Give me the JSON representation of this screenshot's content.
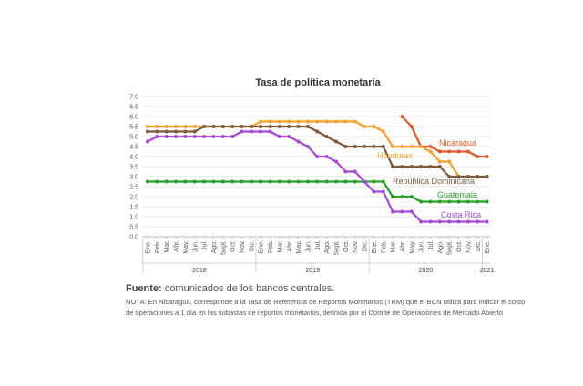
{
  "chart_data": {
    "type": "line",
    "title": "Tasa de política monetaria",
    "ylim": [
      0,
      7
    ],
    "yticks": [
      "7.0",
      "6.5",
      "6.0",
      "5.5",
      "5.0",
      "4.5",
      "4.0",
      "3.5",
      "3.0",
      "2.5",
      "2.0",
      "1.5",
      "1.0",
      "0.5",
      "0.0"
    ],
    "months": [
      "Ene.",
      "Feb.",
      "Mar.",
      "Abr.",
      "May.",
      "Jun.",
      "Jul.",
      "Ago.",
      "Sept.",
      "Oct.",
      "Nov.",
      "Dic.",
      "Ene.",
      "Feb.",
      "Mar.",
      "Abr.",
      "May.",
      "Jun.",
      "Jul.",
      "Ago.",
      "Sept.",
      "Oct.",
      "Nov.",
      "Dic.",
      "Ene.",
      "Feb.",
      "Mar.",
      "Abr.",
      "May.",
      "Jun.",
      "Jul.",
      "Ago.",
      "Sept.",
      "Oct.",
      "Nov.",
      "Dic.",
      "Ene."
    ],
    "years": [
      {
        "label": "2018",
        "start": 0,
        "end": 11
      },
      {
        "label": "2019",
        "start": 12,
        "end": 23
      },
      {
        "label": "2020",
        "start": 24,
        "end": 35
      },
      {
        "label": "2021",
        "start": 36,
        "end": 36
      }
    ],
    "grid": true,
    "legend": "inline labels at right",
    "series": [
      {
        "name": "Nicaragua",
        "color": "#e05a2b",
        "start": 27,
        "values": [
          6.0,
          5.5,
          4.5,
          4.5,
          4.25,
          4.25,
          4.25,
          4.25,
          4.0,
          4.0
        ]
      },
      {
        "name": "Honduras",
        "color": "#f4a12e",
        "start": 0,
        "values": [
          5.5,
          5.5,
          5.5,
          5.5,
          5.5,
          5.5,
          5.5,
          5.5,
          5.5,
          5.5,
          5.5,
          5.5,
          5.75,
          5.75,
          5.75,
          5.75,
          5.75,
          5.75,
          5.75,
          5.75,
          5.75,
          5.75,
          5.75,
          5.5,
          5.5,
          5.25,
          4.5,
          4.5,
          4.5,
          4.5,
          4.25,
          3.75,
          3.75,
          3.0,
          3.0,
          3.0,
          3.0
        ]
      },
      {
        "name": "República Dominicana",
        "color": "#7b5b3a",
        "start": 0,
        "values": [
          5.25,
          5.25,
          5.25,
          5.25,
          5.25,
          5.25,
          5.5,
          5.5,
          5.5,
          5.5,
          5.5,
          5.5,
          5.5,
          5.5,
          5.5,
          5.5,
          5.5,
          5.5,
          5.25,
          5.0,
          4.75,
          4.5,
          4.5,
          4.5,
          4.5,
          4.5,
          3.5,
          3.5,
          3.5,
          3.5,
          3.5,
          3.5,
          3.0,
          3.0,
          3.0,
          3.0,
          3.0
        ]
      },
      {
        "name": "Guatemala",
        "color": "#2aa02b",
        "start": 0,
        "values": [
          2.75,
          2.75,
          2.75,
          2.75,
          2.75,
          2.75,
          2.75,
          2.75,
          2.75,
          2.75,
          2.75,
          2.75,
          2.75,
          2.75,
          2.75,
          2.75,
          2.75,
          2.75,
          2.75,
          2.75,
          2.75,
          2.75,
          2.75,
          2.75,
          2.75,
          2.75,
          2.0,
          2.0,
          2.0,
          1.75,
          1.75,
          1.75,
          1.75,
          1.75,
          1.75,
          1.75,
          1.75
        ]
      },
      {
        "name": "Costa Rica",
        "color": "#a64bd6",
        "start": 0,
        "values": [
          4.75,
          5.0,
          5.0,
          5.0,
          5.0,
          5.0,
          5.0,
          5.0,
          5.0,
          5.0,
          5.25,
          5.25,
          5.25,
          5.25,
          5.0,
          5.0,
          4.75,
          4.5,
          4.0,
          4.0,
          3.75,
          3.25,
          3.25,
          2.75,
          2.25,
          2.25,
          1.25,
          1.25,
          1.25,
          0.75,
          0.75,
          0.75,
          0.75,
          0.75,
          0.75,
          0.75,
          0.75
        ]
      }
    ]
  },
  "footer": {
    "source_label": "Fuente:",
    "source_text": " comunicados de los bancos centrales.",
    "note": "NOTA: En Nicaragua, corresponde a la Tasa de Referencia de Reportos Monetarios (TRM) que el BCN utiliza para indicar el costo de operaciones a 1 día en las subastas de reportos monetarios, definida por el Comité de Operaciones de Mercado Abierto"
  }
}
